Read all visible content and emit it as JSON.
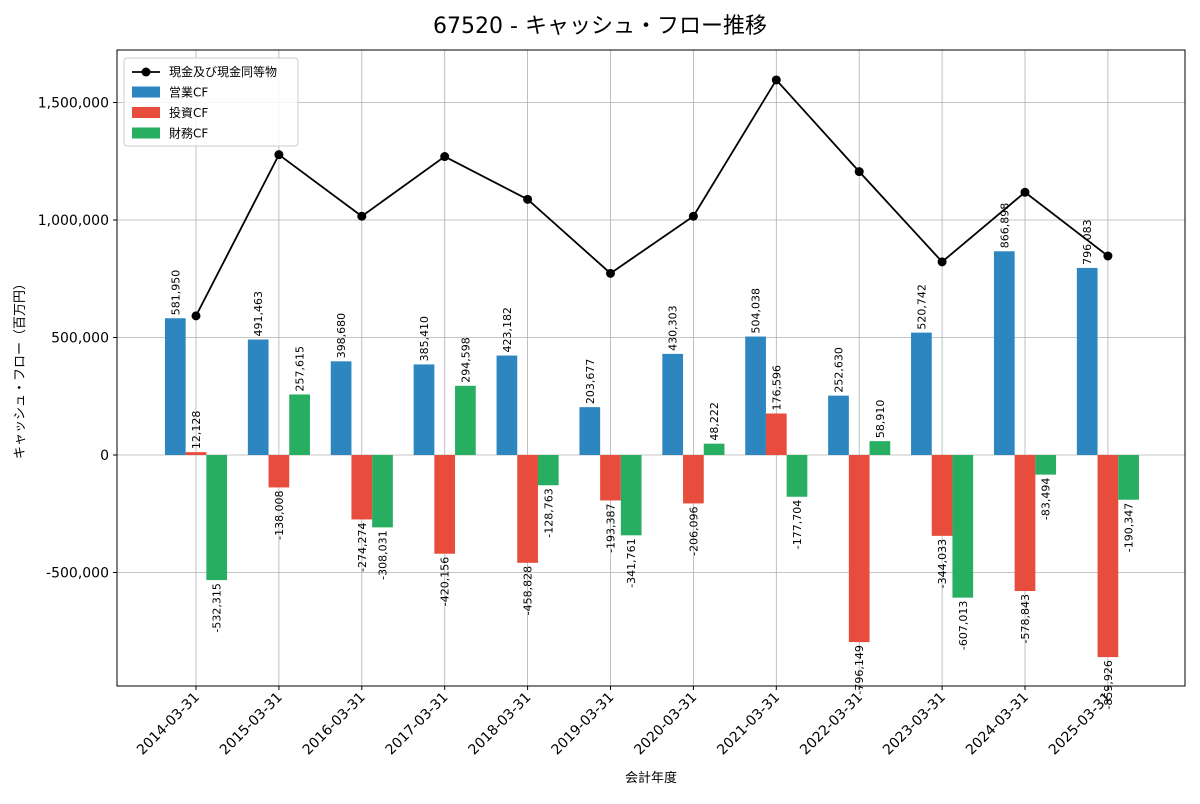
{
  "chart_data": {
    "type": "bar",
    "title": "67520 - キャッシュ・フロー推移",
    "xlabel": "会計年度",
    "ylabel": "キャッシュ・フロー（百万円）",
    "ylim": [
      -1000000,
      1700000
    ],
    "yticks": [
      -500000,
      0,
      500000,
      1000000,
      1500000
    ],
    "ytick_labels": [
      "-500,000",
      "0",
      "500,000",
      "1,000,000",
      "1,500,000"
    ],
    "grid": true,
    "legend_position": "top-left",
    "categories": [
      "2014-03-31",
      "2015-03-31",
      "2016-03-31",
      "2017-03-31",
      "2018-03-31",
      "2019-03-31",
      "2020-03-31",
      "2021-03-31",
      "2022-03-31",
      "2023-03-31",
      "2024-03-31",
      "2025-03-31"
    ],
    "series": [
      {
        "name": "営業CF",
        "type": "bar",
        "color": "#2e86c1",
        "values": [
          581950,
          491463,
          398680,
          385410,
          423182,
          203677,
          430303,
          504038,
          252630,
          520742,
          866898,
          796083
        ],
        "labels": [
          "581,950",
          "491,463",
          "398,680",
          "385,410",
          "423,182",
          "203,677",
          "430,303",
          "504,038",
          "252,630",
          "520,742",
          "866,898",
          "796,083"
        ]
      },
      {
        "name": "投資CF",
        "type": "bar",
        "color": "#e74c3c",
        "values": [
          12128,
          -138008,
          -274274,
          -420156,
          -458828,
          -193387,
          -206096,
          176596,
          -796149,
          -344033,
          -578843,
          -859926
        ],
        "labels": [
          "12,128",
          "-138,008",
          "-274,274",
          "-420,156",
          "-458,828",
          "-193,387",
          "-206,096",
          "176,596",
          "-796,149",
          "-344,033",
          "-578,843",
          "-859,926"
        ]
      },
      {
        "name": "財務CF",
        "type": "bar",
        "color": "#27ae60",
        "values": [
          -532315,
          257615,
          -308031,
          294598,
          -128763,
          -341761,
          48222,
          -177704,
          58910,
          -607013,
          -83494,
          -190347
        ],
        "labels": [
          "-532,315",
          "257,615",
          "-308,031",
          "294,598",
          "-128,763",
          "-341,761",
          "48,222",
          "-177,704",
          "58,910",
          "-607,013",
          "-83,494",
          "-190,347"
        ]
      },
      {
        "name": "現金及び現金同等物",
        "type": "line",
        "color": "#000000",
        "values": [
          592000,
          1278000,
          1016000,
          1270000,
          1088000,
          773000,
          1016000,
          1596000,
          1206000,
          822000,
          1118000,
          847000
        ]
      }
    ]
  }
}
